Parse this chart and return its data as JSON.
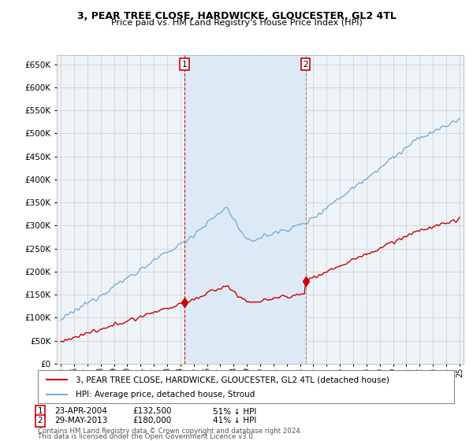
{
  "title": "3, PEAR TREE CLOSE, HARDWICKE, GLOUCESTER, GL2 4TL",
  "subtitle": "Price paid vs. HM Land Registry's House Price Index (HPI)",
  "hpi_color": "#7bafd4",
  "price_color": "#cc0000",
  "sale1_x": 2004.29,
  "sale2_x": 2013.41,
  "marker1_price": 132500,
  "marker2_price": 180000,
  "marker1_label": "23-APR-2004",
  "marker2_label": "29-MAY-2013",
  "marker1_pct": "51% ↓ HPI",
  "marker2_pct": "41% ↓ HPI",
  "legend_price_label": "3, PEAR TREE CLOSE, HARDWICKE, GLOUCESTER, GL2 4TL (detached house)",
  "legend_hpi_label": "HPI: Average price, detached house, Stroud",
  "footnote1": "Contains HM Land Registry data © Crown copyright and database right 2024.",
  "footnote2": "This data is licensed under the Open Government Licence v3.0.",
  "ylim": [
    0,
    670000
  ],
  "yticks": [
    0,
    50000,
    100000,
    150000,
    200000,
    250000,
    300000,
    350000,
    400000,
    450000,
    500000,
    550000,
    600000,
    650000
  ],
  "background_color": "#ffffff",
  "grid_color": "#cccccc",
  "shade_color": "#dce9f5"
}
